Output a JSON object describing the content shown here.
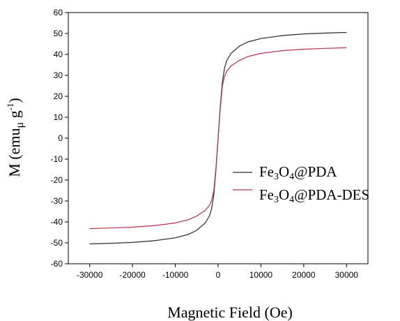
{
  "chart_data": {
    "type": "line",
    "title": "",
    "xlabel": "Magnetic Field (Oe)",
    "ylabel": {
      "base": "M (emu",
      "mu": "μ",
      "rest": " g",
      "sup": "-1",
      "close": ")"
    },
    "xlim": [
      -35000,
      35000
    ],
    "ylim": [
      -60,
      60
    ],
    "x_ticks": [
      -30000,
      -20000,
      -10000,
      0,
      10000,
      20000,
      30000
    ],
    "y_ticks": [
      -60,
      -50,
      -40,
      -30,
      -20,
      -10,
      0,
      10,
      20,
      30,
      40,
      50,
      60
    ],
    "grid": false,
    "legend_position": "right",
    "series": [
      {
        "name": "Fe3O4@PDA",
        "label_parts": [
          "Fe",
          "3",
          "O",
          "4",
          "@PDA"
        ],
        "color": "#2b2b2b",
        "x": [
          -30000,
          -25000,
          -20000,
          -15000,
          -10000,
          -7000,
          -5000,
          -3000,
          -2000,
          -1500,
          -1000,
          -500,
          0,
          500,
          1000,
          1500,
          2000,
          3000,
          5000,
          7000,
          10000,
          15000,
          20000,
          25000,
          30000
        ],
        "y": [
          -50.5,
          -50.2,
          -49.8,
          -49.0,
          -47.6,
          -46.0,
          -44.0,
          -40.5,
          -37.0,
          -33.5,
          -27.0,
          -15.0,
          0,
          15.0,
          27.0,
          33.5,
          37.0,
          40.5,
          44.0,
          46.0,
          47.6,
          49.0,
          49.8,
          50.2,
          50.5
        ]
      },
      {
        "name": "Fe3O4@PDA-DES",
        "label_parts": [
          "Fe",
          "3",
          "O",
          "4",
          "@PDA-DES"
        ],
        "color": "#b5334a",
        "x": [
          -30000,
          -25000,
          -20000,
          -15000,
          -10000,
          -7000,
          -5000,
          -3000,
          -2000,
          -1500,
          -1000,
          -500,
          0,
          500,
          1000,
          1500,
          2000,
          3000,
          5000,
          7000,
          10000,
          15000,
          20000,
          25000,
          30000
        ],
        "y": [
          -43.2,
          -42.9,
          -42.5,
          -41.8,
          -40.5,
          -39.0,
          -37.2,
          -34.5,
          -32.0,
          -29.5,
          -25.0,
          -14.0,
          0,
          14.0,
          25.0,
          29.5,
          32.0,
          34.5,
          37.2,
          39.0,
          40.5,
          41.8,
          42.5,
          42.9,
          43.2
        ]
      }
    ]
  }
}
